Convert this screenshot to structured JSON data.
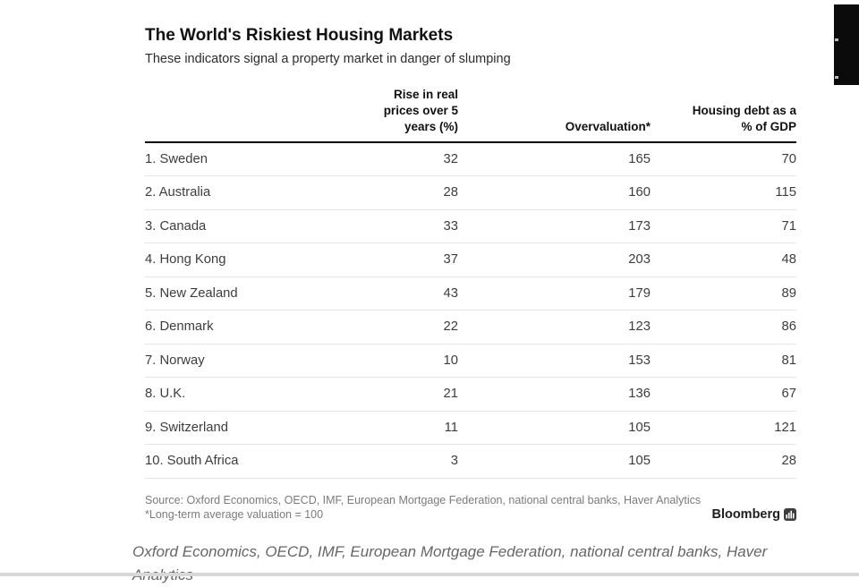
{
  "chart_data": {
    "type": "table",
    "title": "The World's Riskiest Housing Markets",
    "subtitle": "These indicators signal a property market in danger of slumping",
    "columns": [
      "",
      "Rise in real\nprices over 5\nyears (%)",
      "Overvaluation*",
      "Housing debt as a\n% of GDP"
    ],
    "rows": [
      {
        "label": "1. Sweden",
        "values": [
          32,
          165,
          70
        ]
      },
      {
        "label": "2. Australia",
        "values": [
          28,
          160,
          115
        ]
      },
      {
        "label": "3. Canada",
        "values": [
          33,
          173,
          71
        ]
      },
      {
        "label": "4. Hong Kong",
        "values": [
          37,
          203,
          48
        ]
      },
      {
        "label": "5. New Zealand",
        "values": [
          43,
          179,
          89
        ]
      },
      {
        "label": "6. Denmark",
        "values": [
          22,
          123,
          86
        ]
      },
      {
        "label": "7. Norway",
        "values": [
          10,
          153,
          81
        ]
      },
      {
        "label": "8. U.K.",
        "values": [
          21,
          136,
          67
        ]
      },
      {
        "label": "9. Switzerland",
        "values": [
          11,
          105,
          121
        ]
      },
      {
        "label": "10. South Africa",
        "values": [
          3,
          105,
          28
        ]
      }
    ],
    "source": "Source: Oxford Economics, OECD, IMF, European Mortgage Federation, national central banks, Haver Analytics",
    "footnote": "*Long-term average valuation = 100",
    "brand": "Bloomberg"
  },
  "caption": {
    "text": "Oxford Economics, OECD, IMF, European Mortgage Federation, national central banks, Haver Analytics"
  },
  "colors": {
    "header_rule": "#000000",
    "row_divider": "#e5e5e5",
    "title_text": "#111111",
    "body_text": "#3d3d3d",
    "muted_text": "#7b7b7b",
    "caption_text": "#666666",
    "bottom_bar": "#d8d8d8",
    "black_box": "#0b0b0b"
  }
}
